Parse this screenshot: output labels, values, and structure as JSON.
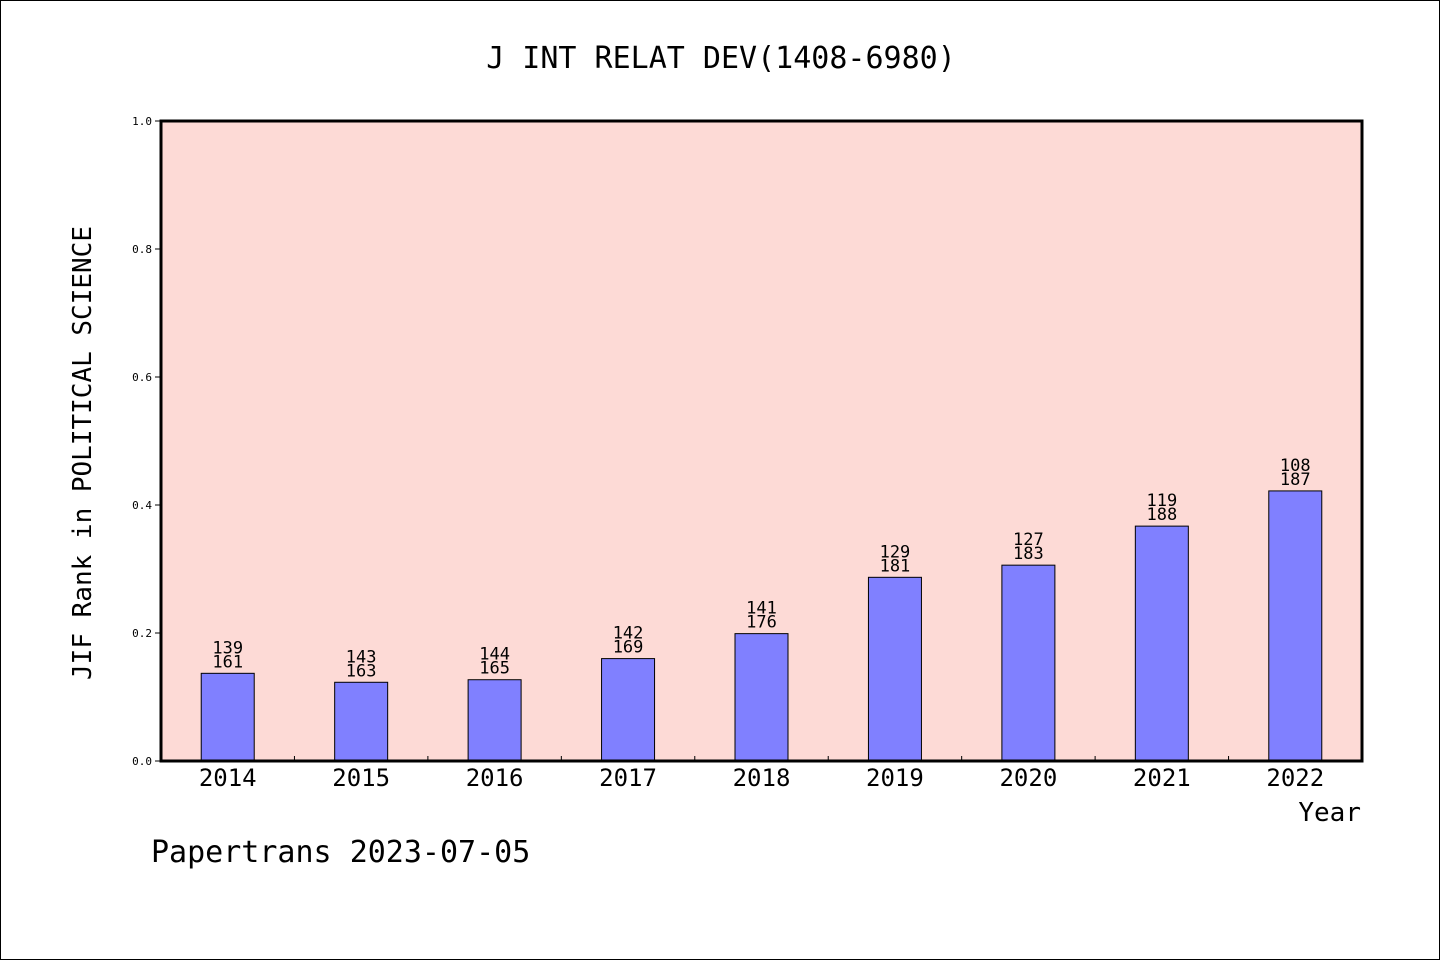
{
  "footer": {
    "source": "Papertrans",
    "date": "2023-07-05"
  },
  "chart_data": {
    "type": "bar",
    "title": "J INT RELAT DEV(1408-6980)",
    "xlabel": "Year",
    "ylabel": "JIF Rank in POLITICAL SCIENCE",
    "ylim": [
      0,
      1.0
    ],
    "yticks": [
      "0.0",
      "0.2",
      "0.4",
      "0.6",
      "0.8",
      "1.0"
    ],
    "categories": [
      "2014",
      "2015",
      "2016",
      "2017",
      "2018",
      "2019",
      "2020",
      "2021",
      "2022"
    ],
    "values": [
      0.137,
      0.123,
      0.127,
      0.16,
      0.199,
      0.287,
      0.306,
      0.367,
      0.422
    ],
    "rank": [
      "139",
      "143",
      "144",
      "142",
      "141",
      "129",
      "127",
      "119",
      "108"
    ],
    "total": [
      "161",
      "163",
      "165",
      "169",
      "176",
      "181",
      "183",
      "188",
      "187"
    ],
    "grid": false,
    "legend": "none",
    "colors": {
      "bar": "#8080ff",
      "plot_background": "#fddad6",
      "axis": "#000000"
    }
  }
}
